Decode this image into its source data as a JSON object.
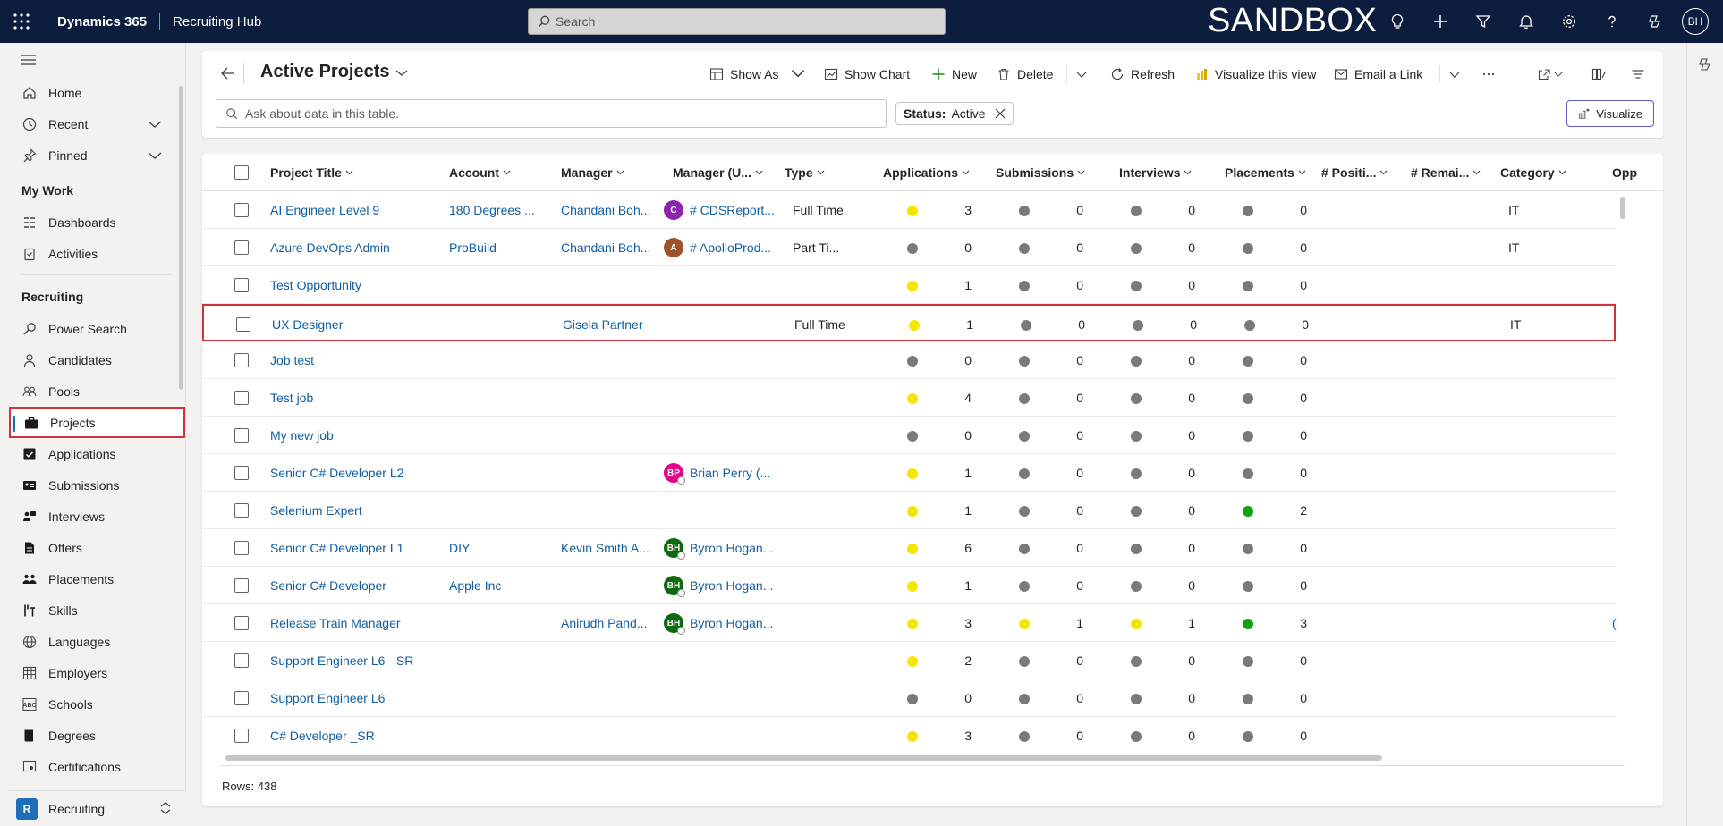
{
  "topbar": {
    "brand": "Dynamics 365",
    "app_name": "Recruiting Hub",
    "search_placeholder": "Search",
    "environment_label": "SANDBOX",
    "user_initials": "BH"
  },
  "sidebar": {
    "home": "Home",
    "recent": "Recent",
    "pinned": "Pinned",
    "group_mywork": "My Work",
    "dashboards": "Dashboards",
    "activities": "Activities",
    "group_recruiting": "Recruiting",
    "items": [
      {
        "label": "Power Search",
        "icon": "search-icon"
      },
      {
        "label": "Candidates",
        "icon": "person-icon"
      },
      {
        "label": "Pools",
        "icon": "people-icon"
      },
      {
        "label": "Projects",
        "icon": "briefcase-icon"
      },
      {
        "label": "Applications",
        "icon": "checkbox-icon"
      },
      {
        "label": "Submissions",
        "icon": "contact-card-icon"
      },
      {
        "label": "Interviews",
        "icon": "interview-icon"
      },
      {
        "label": "Offers",
        "icon": "document-icon"
      },
      {
        "label": "Placements",
        "icon": "people-team-icon"
      },
      {
        "label": "Skills",
        "icon": "skills-icon"
      },
      {
        "label": "Languages",
        "icon": "globe-icon"
      },
      {
        "label": "Employers",
        "icon": "building-icon"
      },
      {
        "label": "Schools",
        "icon": "abc-icon"
      },
      {
        "label": "Degrees",
        "icon": "book-icon"
      },
      {
        "label": "Certifications",
        "icon": "certificate-icon"
      }
    ],
    "footer_badge": "R",
    "footer_label": "Recruiting"
  },
  "command": {
    "view_title": "Active Projects",
    "show_as": "Show As",
    "show_chart": "Show Chart",
    "new": "New",
    "delete": "Delete",
    "refresh": "Refresh",
    "visualize_view": "Visualize this view",
    "email_link": "Email a Link",
    "ask_placeholder": "Ask about data in this table.",
    "filter_chip_key": "Status:",
    "filter_chip_value": "Active",
    "visualize_button": "Visualize"
  },
  "grid": {
    "columns": [
      "Project Title",
      "Account",
      "Manager",
      "Manager (U...",
      "Type",
      "Applications",
      "Submissions",
      "Interviews",
      "Placements",
      "# Positi...",
      "# Remai...",
      "Category",
      "Opp"
    ],
    "rows": [
      {
        "title": "AI Engineer Level 9",
        "account": "180 Degrees ...",
        "manager": "Chandani Boh...",
        "owner": "# CDSReport...",
        "owner_initials": "C",
        "owner_color": "#8e24aa",
        "type": "Full Time",
        "apps": "3",
        "subs": "0",
        "ints": "0",
        "plcs": "0",
        "apps_color": "#f5e600",
        "subs_color": "#7a7a7a",
        "ints_color": "#7a7a7a",
        "plcs_color": "#7a7a7a",
        "category": "IT",
        "opp": ""
      },
      {
        "title": "Azure DevOps Admin",
        "account": "ProBuild",
        "manager": "Chandani Boh...",
        "owner": "# ApolloProd...",
        "owner_initials": "A",
        "owner_color": "#a0522d",
        "type": "Part Ti...",
        "apps": "0",
        "subs": "0",
        "ints": "0",
        "plcs": "0",
        "apps_color": "#7a7a7a",
        "subs_color": "#7a7a7a",
        "ints_color": "#7a7a7a",
        "plcs_color": "#7a7a7a",
        "category": "IT",
        "opp": ""
      },
      {
        "title": "Test Opportunity",
        "account": "",
        "manager": "",
        "owner": "",
        "owner_initials": "",
        "owner_color": "",
        "type": "",
        "apps": "1",
        "subs": "0",
        "ints": "0",
        "plcs": "0",
        "apps_color": "#f5e600",
        "subs_color": "#7a7a7a",
        "ints_color": "#7a7a7a",
        "plcs_color": "#7a7a7a",
        "category": "",
        "opp": ""
      },
      {
        "title": "UX Designer",
        "account": "",
        "manager": "Gisela Partner",
        "owner": "",
        "owner_initials": "",
        "owner_color": "",
        "type": "Full Time",
        "apps": "1",
        "subs": "0",
        "ints": "0",
        "plcs": "0",
        "apps_color": "#f5e600",
        "subs_color": "#7a7a7a",
        "ints_color": "#7a7a7a",
        "plcs_color": "#7a7a7a",
        "category": "IT",
        "opp": ""
      },
      {
        "title": "Job test",
        "account": "",
        "manager": "",
        "owner": "",
        "owner_initials": "",
        "owner_color": "",
        "type": "",
        "apps": "0",
        "subs": "0",
        "ints": "0",
        "plcs": "0",
        "apps_color": "#7a7a7a",
        "subs_color": "#7a7a7a",
        "ints_color": "#7a7a7a",
        "plcs_color": "#7a7a7a",
        "category": "",
        "opp": ""
      },
      {
        "title": "Test job",
        "account": "",
        "manager": "",
        "owner": "",
        "owner_initials": "",
        "owner_color": "",
        "type": "",
        "apps": "4",
        "subs": "0",
        "ints": "0",
        "plcs": "0",
        "apps_color": "#f5e600",
        "subs_color": "#7a7a7a",
        "ints_color": "#7a7a7a",
        "plcs_color": "#7a7a7a",
        "category": "",
        "opp": ""
      },
      {
        "title": "My new job",
        "account": "",
        "manager": "",
        "owner": "",
        "owner_initials": "",
        "owner_color": "",
        "type": "",
        "apps": "0",
        "subs": "0",
        "ints": "0",
        "plcs": "0",
        "apps_color": "#7a7a7a",
        "subs_color": "#7a7a7a",
        "ints_color": "#7a7a7a",
        "plcs_color": "#7a7a7a",
        "category": "",
        "opp": ""
      },
      {
        "title": "Senior C# Developer L2",
        "account": "",
        "manager": "",
        "owner": "Brian Perry (...",
        "owner_initials": "BP",
        "owner_color": "#e3008c",
        "type": "",
        "apps": "1",
        "subs": "0",
        "ints": "0",
        "plcs": "0",
        "apps_color": "#f5e600",
        "subs_color": "#7a7a7a",
        "ints_color": "#7a7a7a",
        "plcs_color": "#7a7a7a",
        "category": "",
        "opp": ""
      },
      {
        "title": "Selenium Expert",
        "account": "",
        "manager": "",
        "owner": "",
        "owner_initials": "",
        "owner_color": "",
        "type": "",
        "apps": "1",
        "subs": "0",
        "ints": "0",
        "plcs": "2",
        "apps_color": "#f5e600",
        "subs_color": "#7a7a7a",
        "ints_color": "#7a7a7a",
        "plcs_color": "#13a10e",
        "category": "",
        "opp": ""
      },
      {
        "title": "Senior C# Developer L1",
        "account": "DIY",
        "manager": "Kevin Smith A...",
        "owner": "Byron Hogan...",
        "owner_initials": "BH",
        "owner_color": "#0b6a0b",
        "type": "",
        "apps": "6",
        "subs": "0",
        "ints": "0",
        "plcs": "0",
        "apps_color": "#f5e600",
        "subs_color": "#7a7a7a",
        "ints_color": "#7a7a7a",
        "plcs_color": "#7a7a7a",
        "category": "",
        "opp": ""
      },
      {
        "title": "Senior C# Developer",
        "account": "Apple Inc",
        "manager": "",
        "owner": "Byron Hogan...",
        "owner_initials": "BH",
        "owner_color": "#0b6a0b",
        "type": "",
        "apps": "1",
        "subs": "0",
        "ints": "0",
        "plcs": "0",
        "apps_color": "#f5e600",
        "subs_color": "#7a7a7a",
        "ints_color": "#7a7a7a",
        "plcs_color": "#7a7a7a",
        "category": "",
        "opp": ""
      },
      {
        "title": "Release Train Manager",
        "account": "",
        "manager": "Anirudh Pand...",
        "owner": "Byron Hogan...",
        "owner_initials": "BH",
        "owner_color": "#0b6a0b",
        "type": "",
        "apps": "3",
        "subs": "1",
        "ints": "1",
        "plcs": "3",
        "apps_color": "#f5e600",
        "subs_color": "#f5e600",
        "ints_color": "#f5e600",
        "plcs_color": "#13a10e",
        "category": "",
        "opp": "("
      },
      {
        "title": "Support Engineer L6 - SR",
        "account": "",
        "manager": "",
        "owner": "",
        "owner_initials": "",
        "owner_color": "",
        "type": "",
        "apps": "2",
        "subs": "0",
        "ints": "0",
        "plcs": "0",
        "apps_color": "#f5e600",
        "subs_color": "#7a7a7a",
        "ints_color": "#7a7a7a",
        "plcs_color": "#7a7a7a",
        "category": "",
        "opp": ""
      },
      {
        "title": "Support Engineer L6",
        "account": "",
        "manager": "",
        "owner": "",
        "owner_initials": "",
        "owner_color": "",
        "type": "",
        "apps": "0",
        "subs": "0",
        "ints": "0",
        "plcs": "0",
        "apps_color": "#7a7a7a",
        "subs_color": "#7a7a7a",
        "ints_color": "#7a7a7a",
        "plcs_color": "#7a7a7a",
        "category": "",
        "opp": ""
      },
      {
        "title": "C# Developer _SR",
        "account": "",
        "manager": "",
        "owner": "",
        "owner_initials": "",
        "owner_color": "",
        "type": "",
        "apps": "3",
        "subs": "0",
        "ints": "0",
        "plcs": "0",
        "apps_color": "#f5e600",
        "subs_color": "#7a7a7a",
        "ints_color": "#7a7a7a",
        "plcs_color": "#7a7a7a",
        "category": "",
        "opp": ""
      }
    ],
    "rows_count": "Rows: 438"
  }
}
